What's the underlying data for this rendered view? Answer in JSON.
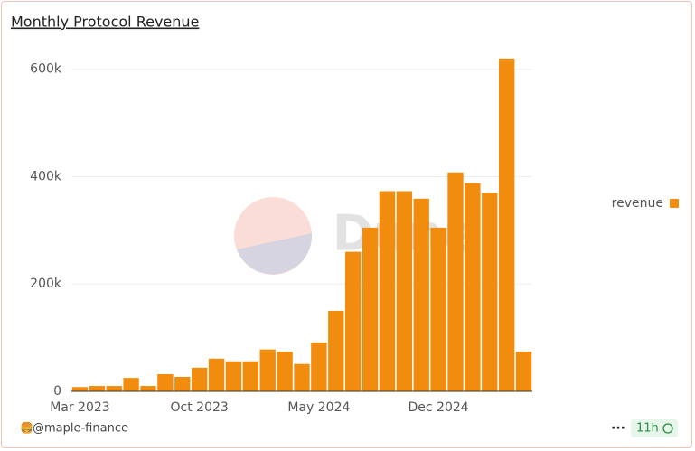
{
  "chart_data": {
    "type": "bar",
    "title": "Monthly Protocol Revenue",
    "watermark": "Dune",
    "categories": [
      "Mar 2023",
      null,
      null,
      null,
      null,
      null,
      null,
      "Oct 2023",
      null,
      null,
      null,
      null,
      null,
      null,
      "May 2024",
      null,
      null,
      null,
      null,
      null,
      null,
      "Dec 2024",
      null,
      null,
      null,
      null,
      null
    ],
    "series": [
      {
        "name": "revenue",
        "color": "#f28c0f",
        "values": [
          8000,
          10000,
          10000,
          25000,
          10000,
          32000,
          27000,
          44000,
          61000,
          56000,
          56000,
          78000,
          74000,
          51000,
          91000,
          150000,
          260000,
          305000,
          373000,
          373000,
          359000,
          305000,
          408000,
          388000,
          370000,
          620000,
          74000
        ]
      }
    ],
    "ylim": [
      0,
      650000
    ],
    "yticks": [
      0,
      {
        "value": 200000,
        "label": "200k"
      },
      {
        "value": 400000,
        "label": "400k"
      },
      {
        "value": 600000,
        "label": "600k"
      }
    ],
    "grid": true,
    "legend": "right"
  },
  "footer": {
    "author": "@maple-finance",
    "age": "11h"
  }
}
